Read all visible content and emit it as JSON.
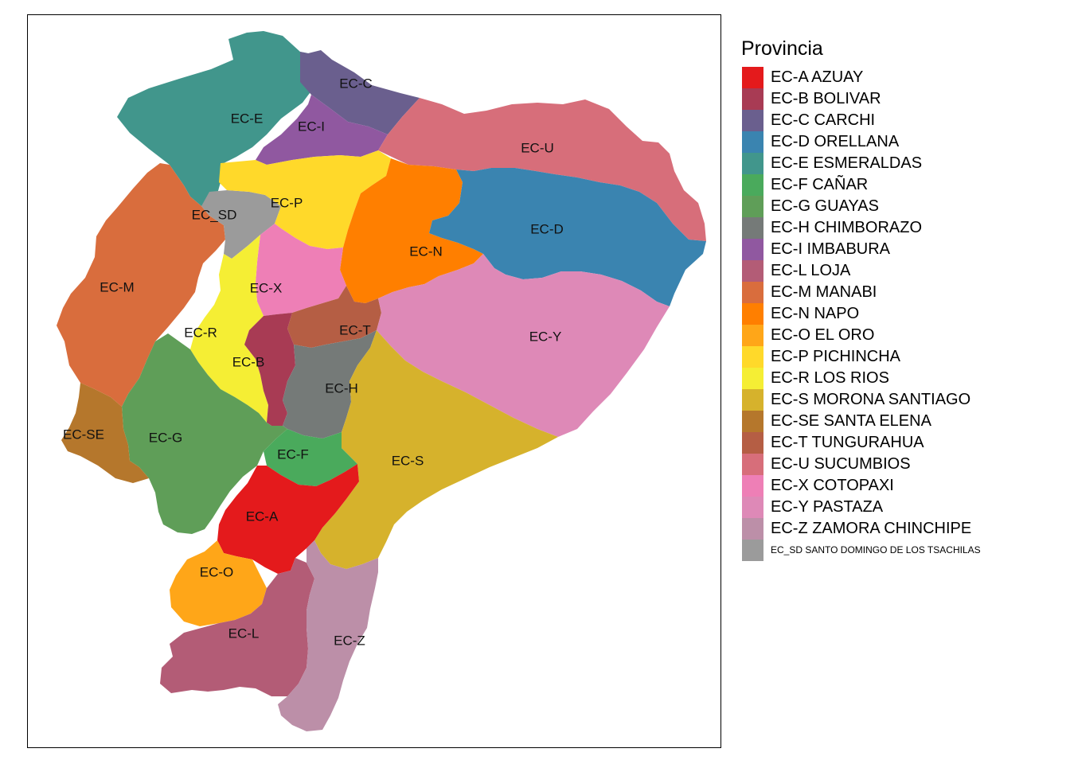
{
  "legend": {
    "title": "Provincia"
  },
  "provinces": [
    {
      "code": "EC-A",
      "label": "EC-A AZUAY",
      "color": "#e41a1c"
    },
    {
      "code": "EC-B",
      "label": "EC-B BOLIVAR",
      "color": "#a83b54"
    },
    {
      "code": "EC-C",
      "label": "EC-C CARCHI",
      "color": "#6a5f8e"
    },
    {
      "code": "EC-D",
      "label": "EC-D ORELLANA",
      "color": "#3a84b0"
    },
    {
      "code": "EC-E",
      "label": "EC-E ESMERALDAS",
      "color": "#41968c"
    },
    {
      "code": "EC-F",
      "label": "EC-F CAÑAR",
      "color": "#4aaa5c"
    },
    {
      "code": "EC-G",
      "label": "EC-G GUAYAS",
      "color": "#5f9e58"
    },
    {
      "code": "EC-H",
      "label": "EC-H CHIMBORAZO",
      "color": "#757a78"
    },
    {
      "code": "EC-I",
      "label": "EC-I IMBABURA",
      "color": "#9058a0"
    },
    {
      "code": "EC-L",
      "label": "EC-L LOJA",
      "color": "#b35c76"
    },
    {
      "code": "EC-M",
      "label": "EC-M MANABI",
      "color": "#d96d3d"
    },
    {
      "code": "EC-N",
      "label": "EC-N NAPO",
      "color": "#ff7f00"
    },
    {
      "code": "EC-O",
      "label": "EC-O EL ORO",
      "color": "#ffa618"
    },
    {
      "code": "EC-P",
      "label": "EC-P PICHINCHA",
      "color": "#ffd92a"
    },
    {
      "code": "EC-R",
      "label": "EC-R LOS RIOS",
      "color": "#f5ee34"
    },
    {
      "code": "EC-S",
      "label": "EC-S MORONA SANTIAGO",
      "color": "#d6b22c"
    },
    {
      "code": "EC-SE",
      "label": "EC-SE SANTA ELENA",
      "color": "#b5772c"
    },
    {
      "code": "EC-T",
      "label": "EC-T TUNGURAHUA",
      "color": "#b55e44"
    },
    {
      "code": "EC-U",
      "label": "EC-U SUCUMBIOS",
      "color": "#d76e7a"
    },
    {
      "code": "EC-X",
      "label": "EC-X COTOPAXI",
      "color": "#ee7fb6"
    },
    {
      "code": "EC-Y",
      "label": "EC-Y PASTAZA",
      "color": "#de89b7"
    },
    {
      "code": "EC-Z",
      "label": "EC-Z ZAMORA CHINCHIPE",
      "color": "#bc8fa8"
    },
    {
      "code": "EC_SD",
      "label": "EC_SD SANTO DOMINGO DE LOS TSACHILAS",
      "color": "#9b9b9b"
    }
  ]
}
